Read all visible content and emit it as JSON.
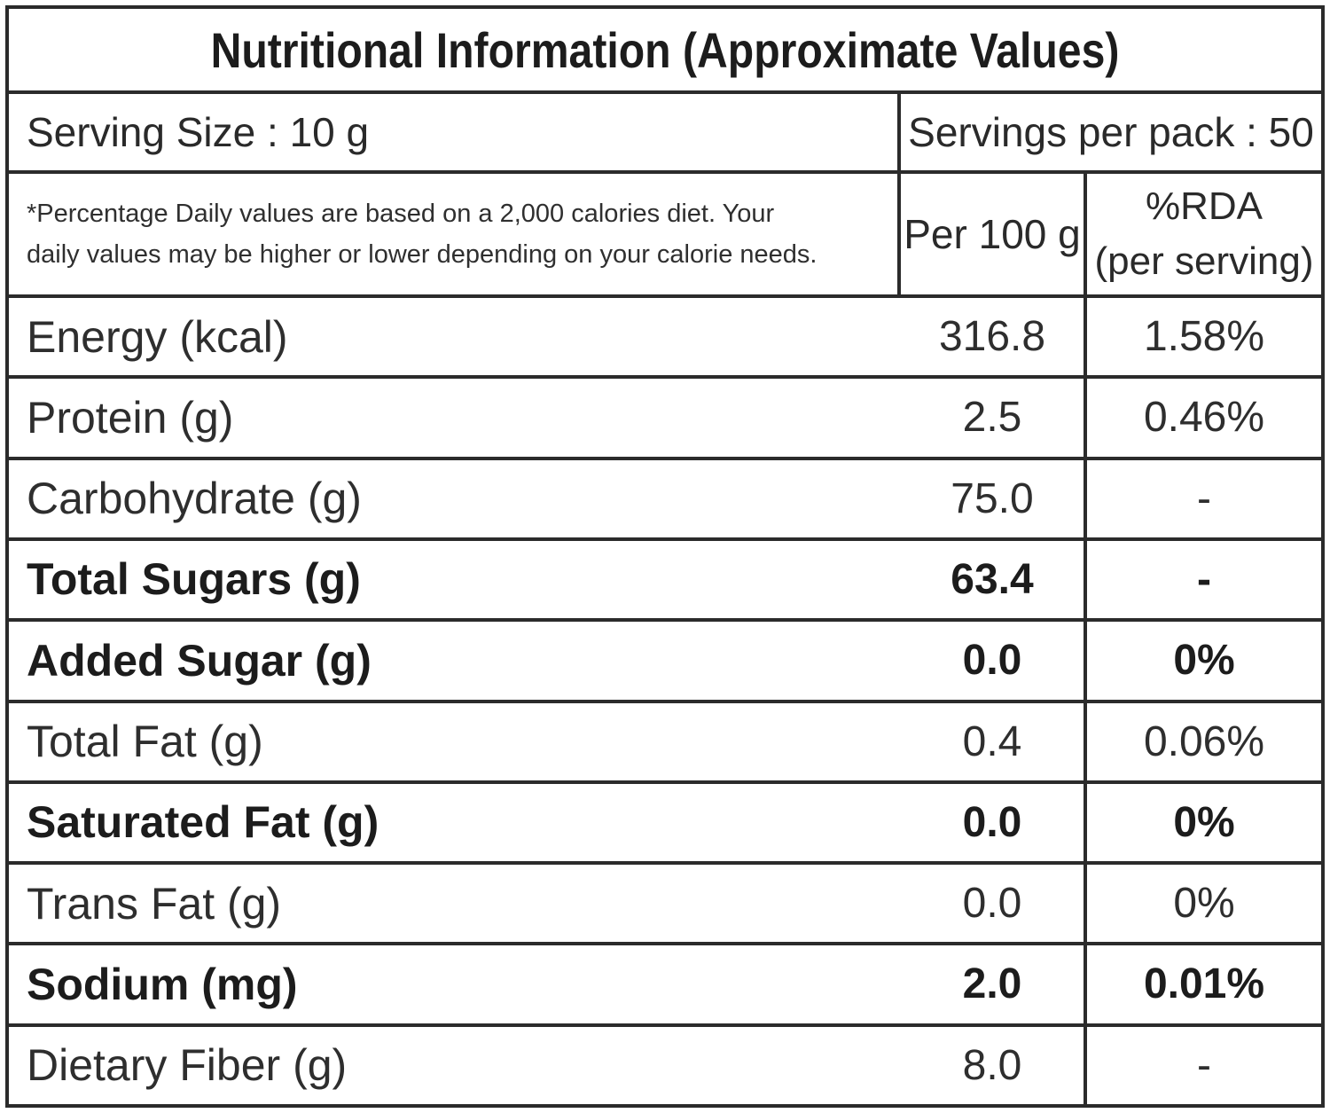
{
  "title": "Nutritional Information (Approximate Values)",
  "serving": {
    "size": "Serving Size : 10 g",
    "per_pack": "Servings per pack : 50"
  },
  "header": {
    "note_line1": "*Percentage Daily values are based on a 2,000 calories diet. Your",
    "note_line2": "daily values may be higher or lower depending on your calorie needs.",
    "per100": "Per 100 g",
    "rda_line1": "%RDA",
    "rda_line2": "(per serving)"
  },
  "rows": [
    {
      "label": "Energy (kcal)",
      "value": "316.8",
      "rda": "1.58%",
      "bold": false
    },
    {
      "label": "Protein (g)",
      "value": "2.5",
      "rda": "0.46%",
      "bold": false
    },
    {
      "label": "Carbohydrate (g)",
      "value": "75.0",
      "rda": "-",
      "bold": false
    },
    {
      "label": "Total Sugars (g)",
      "value": "63.4",
      "rda": "-",
      "bold": true
    },
    {
      "label": "Added Sugar (g)",
      "value": "0.0",
      "rda": "0%",
      "bold": true
    },
    {
      "label": "Total Fat (g)",
      "value": "0.4",
      "rda": "0.06%",
      "bold": false
    },
    {
      "label": "Saturated Fat (g)",
      "value": "0.0",
      "rda": "0%",
      "bold": true
    },
    {
      "label": "Trans Fat (g)",
      "value": "0.0",
      "rda": "0%",
      "bold": false
    },
    {
      "label": "Sodium (mg)",
      "value": "2.0",
      "rda": "0.01%",
      "bold": true
    },
    {
      "label": "Dietary Fiber (g)",
      "value": "8.0",
      "rda": "-",
      "bold": false
    }
  ]
}
